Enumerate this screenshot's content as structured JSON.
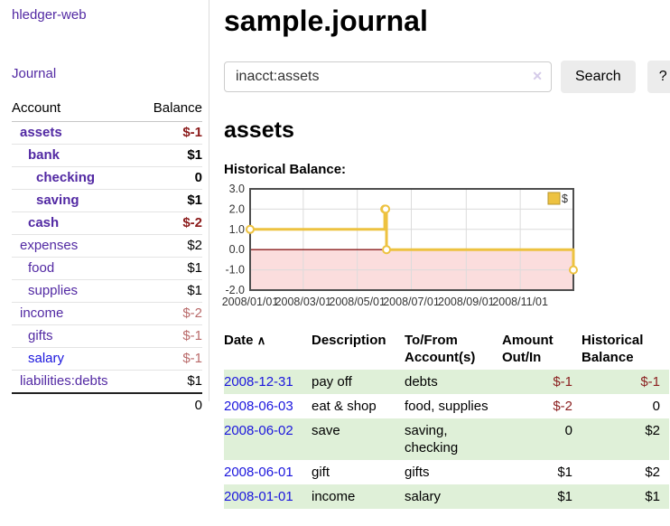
{
  "app": {
    "brand": "hledger-web"
  },
  "sidebar": {
    "journal_link": "Journal",
    "accounts_header": {
      "account": "Account",
      "balance": "Balance"
    },
    "accounts": [
      {
        "name": "assets",
        "indent": 1,
        "bold": true,
        "visited": true,
        "balance": "$-1"
      },
      {
        "name": "bank",
        "indent": 2,
        "bold": true,
        "visited": true,
        "balance": "$1"
      },
      {
        "name": "checking",
        "indent": 3,
        "bold": true,
        "visited": true,
        "balance": "0"
      },
      {
        "name": "saving",
        "indent": 3,
        "bold": true,
        "visited": true,
        "balance": "$1"
      },
      {
        "name": "cash",
        "indent": 2,
        "bold": true,
        "visited": true,
        "balance": "$-2"
      },
      {
        "name": "expenses",
        "indent": 1,
        "bold": false,
        "visited": true,
        "balance": "$2"
      },
      {
        "name": "food",
        "indent": 2,
        "bold": false,
        "visited": true,
        "balance": "$1"
      },
      {
        "name": "supplies",
        "indent": 2,
        "bold": false,
        "visited": true,
        "balance": "$1"
      },
      {
        "name": "income",
        "indent": 1,
        "bold": false,
        "visited": true,
        "balance": "$-2"
      },
      {
        "name": "gifts",
        "indent": 2,
        "bold": false,
        "visited": true,
        "balance": "$-1"
      },
      {
        "name": "salary",
        "indent": 2,
        "bold": false,
        "visited": false,
        "balance": "$-1"
      },
      {
        "name": "liabilities:debts",
        "indent": 1,
        "bold": false,
        "visited": true,
        "balance": "$1"
      }
    ],
    "total": "0"
  },
  "header": {
    "title": "sample.journal"
  },
  "search": {
    "value": "inacct:assets",
    "clear_icon": "✕",
    "button": "Search",
    "help_button": "?"
  },
  "account_page": {
    "title": "assets",
    "chart_label": "Historical Balance:"
  },
  "chart_data": {
    "type": "line",
    "title": "Historical Balance",
    "line_style": "step",
    "legend_position": "top-right",
    "grid": true,
    "ylim": [
      -2,
      3
    ],
    "yticks": [
      3.0,
      2.0,
      1.0,
      0.0,
      -1.0,
      -2.0
    ],
    "xlim": [
      "2008-01-01",
      "2008-12-31"
    ],
    "xticks": [
      {
        "date": "2008-01-01",
        "label": "2008/01/01"
      },
      {
        "date": "2008-03-01",
        "label": "2008/03/01"
      },
      {
        "date": "2008-05-01",
        "label": "2008/05/01"
      },
      {
        "date": "2008-07-01",
        "label": "2008/07/01"
      },
      {
        "date": "2008-09-01",
        "label": "2008/09/01"
      },
      {
        "date": "2008-11-01",
        "label": "2008/11/01"
      }
    ],
    "series": [
      {
        "name": "$",
        "x": [
          "2008-01-01",
          "2008-06-01",
          "2008-06-02",
          "2008-06-03",
          "2008-12-31"
        ],
        "values": [
          1,
          2,
          2,
          0,
          -1
        ]
      }
    ],
    "colors": {
      "series": "#edc240",
      "series_edge": "#b8962e",
      "negative_region": "#fbdddd",
      "zero_line": "#8b1c1c",
      "grid": "#dcdcdc",
      "border": "#4e4e4e"
    }
  },
  "register": {
    "columns": [
      "Date",
      "Description",
      "To/From Account(s)",
      "Amount Out/In",
      "Historical Balance"
    ],
    "sort_icon": "∧",
    "rows": [
      {
        "date": "2008-12-31",
        "description": "pay off",
        "accounts": "debts",
        "amount": "$-1",
        "balance": "$-1"
      },
      {
        "date": "2008-06-03",
        "description": "eat & shop",
        "accounts": "food, supplies",
        "amount": "$-2",
        "balance": "0"
      },
      {
        "date": "2008-06-02",
        "description": "save",
        "accounts": "saving, checking",
        "amount": "0",
        "balance": "$2"
      },
      {
        "date": "2008-06-01",
        "description": "gift",
        "accounts": "gifts",
        "amount": "$1",
        "balance": "$2"
      },
      {
        "date": "2008-01-01",
        "description": "income",
        "accounts": "salary",
        "amount": "$1",
        "balance": "$1"
      }
    ]
  },
  "colors": {
    "link_purple": "#5229a3",
    "link_blue": "#1b16dd",
    "negative_strong": "#8b1a1a",
    "negative_muted": "#b96a6a",
    "row_stripe_green": "#dff0d8",
    "chart_gold": "#edc240"
  }
}
